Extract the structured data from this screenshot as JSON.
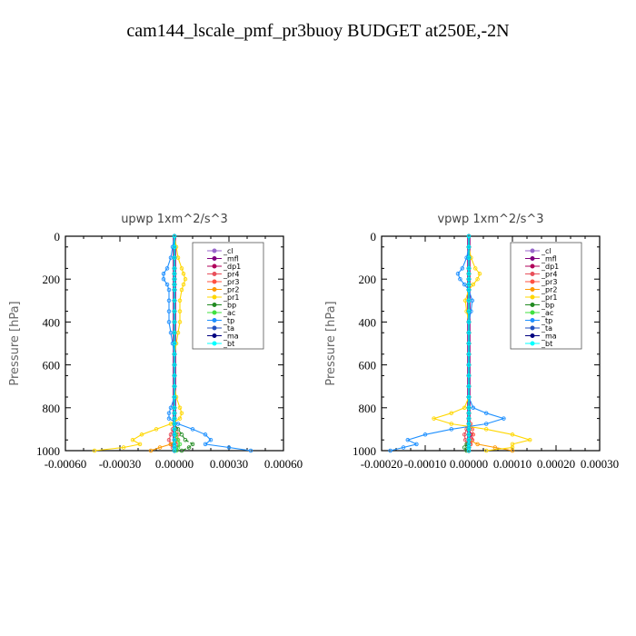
{
  "figure_title": "cam144_lscale_pmf_pr3buoy  BUDGET at250E,-2N",
  "chart_data": [
    {
      "type": "line",
      "title": "upwp   1xm^2/s^3",
      "ylabel": "Pressure [hPa]",
      "xlim": [
        -0.0006,
        0.0006
      ],
      "ylim": [
        1000,
        0
      ],
      "y_inverted": true,
      "xticks": [
        "-0.00060",
        "-0.00030",
        "0.00000",
        "0.00030",
        "0.00060"
      ],
      "yticks": [
        "0",
        "200",
        "400",
        "600",
        "800",
        "1000"
      ],
      "legend_position": "top-right",
      "levels": [
        0,
        50,
        100,
        150,
        175,
        200,
        225,
        250,
        300,
        350,
        400,
        450,
        500,
        550,
        600,
        650,
        700,
        750,
        800,
        825,
        850,
        875,
        900,
        925,
        950,
        970,
        985,
        1000
      ],
      "series": [
        {
          "name": "_cl",
          "color": "#9966cc",
          "values": [
            0,
            0,
            0,
            0,
            0,
            0,
            0,
            0,
            0,
            0,
            0,
            0,
            0,
            0,
            0,
            0,
            0,
            0,
            0,
            0,
            0,
            0,
            0,
            0,
            0,
            0,
            0,
            0
          ]
        },
        {
          "name": "_mfl",
          "color": "#800080",
          "values": [
            0,
            0,
            0,
            0,
            0,
            0,
            0,
            0,
            0,
            0,
            0,
            0,
            0,
            0,
            0,
            0,
            0,
            0,
            0,
            0,
            0,
            0,
            0,
            0,
            0,
            0,
            0,
            0
          ]
        },
        {
          "name": "_dp1",
          "color": "#b0005a",
          "values": [
            0,
            0,
            0,
            0,
            0,
            0,
            0,
            0,
            0,
            0,
            0,
            0,
            0,
            0,
            0,
            0,
            0,
            0,
            0,
            0,
            0,
            0,
            0,
            0,
            1e-05,
            -2e-05,
            1e-05,
            0
          ]
        },
        {
          "name": "_pr4",
          "color": "#e8505b",
          "values": [
            0,
            0,
            0,
            0,
            0,
            0,
            0,
            0,
            0,
            0,
            0,
            0,
            0,
            0,
            0,
            0,
            0,
            0,
            0,
            0,
            0,
            0,
            -1e-05,
            -2e-05,
            -3e-05,
            -2e-05,
            -1e-05,
            0
          ]
        },
        {
          "name": "_pr3",
          "color": "#ff5040",
          "values": [
            0,
            0,
            0,
            0,
            0,
            0,
            0,
            0,
            0,
            0,
            0,
            0,
            0,
            0,
            0,
            0,
            0,
            0,
            0,
            0,
            0,
            0,
            1e-05,
            2e-05,
            2e-05,
            1e-05,
            0,
            0
          ]
        },
        {
          "name": "_pr2",
          "color": "#ff9a00",
          "values": [
            0,
            0,
            0,
            0,
            0,
            0,
            0,
            0,
            0,
            0,
            0,
            0,
            0,
            0,
            0,
            0,
            0,
            0,
            0,
            0,
            0,
            0,
            0,
            0,
            1e-05,
            -2e-05,
            -8e-05,
            -0.00013
          ]
        },
        {
          "name": "_pr1",
          "color": "#ffd700",
          "values": [
            0,
            1e-05,
            2e-05,
            4e-05,
            5e-05,
            6e-05,
            5e-05,
            4e-05,
            3e-05,
            3e-05,
            3e-05,
            2e-05,
            1e-05,
            0,
            0,
            0,
            0,
            1e-05,
            3e-05,
            4e-05,
            3e-05,
            -2e-05,
            -0.0001,
            -0.00018,
            -0.00023,
            -0.00019,
            -0.00028,
            -0.00044
          ]
        },
        {
          "name": "_bp",
          "color": "#228b22",
          "values": [
            0,
            0,
            0,
            0,
            0,
            0,
            0,
            0,
            0,
            0,
            0,
            0,
            0,
            0,
            0,
            0,
            0,
            0,
            0,
            0,
            0,
            0,
            2e-05,
            4e-05,
            6e-05,
            0.0001,
            8e-05,
            4e-05
          ]
        },
        {
          "name": "_ac",
          "color": "#40e040",
          "values": [
            0,
            0,
            0,
            0,
            0,
            0,
            0,
            0,
            0,
            0,
            0,
            0,
            0,
            0,
            0,
            0,
            0,
            0,
            0,
            0,
            0,
            0,
            0,
            1e-05,
            2e-05,
            3e-05,
            2e-05,
            1e-05
          ]
        },
        {
          "name": "_tp",
          "color": "#1e90ff",
          "values": [
            0,
            -1e-05,
            -2e-05,
            -4e-05,
            -6e-05,
            -6e-05,
            -4e-05,
            -3e-05,
            -3e-05,
            -3e-05,
            -3e-05,
            -2e-05,
            -1e-05,
            0,
            0,
            0,
            0,
            0,
            -2e-05,
            -3e-05,
            -3e-05,
            2e-05,
            0.0001,
            0.00017,
            0.0002,
            0.00017,
            0.0003,
            0.00042
          ]
        },
        {
          "name": "_ta",
          "color": "#2050c0",
          "values": [
            0,
            0,
            0,
            0,
            0,
            0,
            0,
            0,
            0,
            0,
            0,
            0,
            0,
            0,
            0,
            0,
            0,
            0,
            0,
            0,
            0,
            0,
            0,
            0,
            0,
            0,
            0,
            0
          ]
        },
        {
          "name": "_ma",
          "color": "#000080",
          "values": [
            0,
            0,
            0,
            0,
            0,
            0,
            0,
            0,
            0,
            0,
            0,
            0,
            0,
            0,
            0,
            0,
            0,
            0,
            0,
            0,
            0,
            0,
            0,
            0,
            0,
            0,
            0,
            0
          ]
        },
        {
          "name": "_bt",
          "color": "#00ffff",
          "values": [
            0,
            0,
            0,
            0,
            0,
            0,
            0,
            0,
            0,
            0,
            0,
            0,
            0,
            0,
            0,
            0,
            0,
            0,
            0,
            0,
            0,
            0,
            0,
            0,
            0,
            0,
            0,
            0
          ]
        }
      ]
    },
    {
      "type": "line",
      "title": "vpwp   1xm^2/s^3",
      "ylabel": "Pressure [hPa]",
      "xlim": [
        -0.0002,
        0.0003
      ],
      "ylim": [
        1000,
        0
      ],
      "y_inverted": true,
      "xticks": [
        "-0.00020",
        "-0.00010",
        "0.00000",
        "0.00010",
        "0.00020",
        "0.00030"
      ],
      "yticks": [
        "0",
        "200",
        "400",
        "600",
        "800",
        "1000"
      ],
      "legend_position": "top-right",
      "levels": [
        0,
        50,
        100,
        150,
        175,
        200,
        225,
        250,
        300,
        350,
        400,
        450,
        500,
        550,
        600,
        650,
        700,
        750,
        800,
        825,
        850,
        875,
        900,
        925,
        950,
        970,
        985,
        1000
      ],
      "series": [
        {
          "name": "_cl",
          "color": "#9966cc",
          "values": [
            0,
            0,
            0,
            0,
            0,
            0,
            0,
            0,
            0,
            0,
            0,
            0,
            0,
            0,
            0,
            0,
            0,
            0,
            0,
            0,
            0,
            0,
            0,
            0,
            0,
            0,
            0,
            0
          ]
        },
        {
          "name": "_mfl",
          "color": "#800080",
          "values": [
            0,
            0,
            0,
            0,
            0,
            0,
            0,
            0,
            0,
            0,
            0,
            0,
            0,
            0,
            0,
            0,
            0,
            0,
            0,
            0,
            0,
            0,
            0,
            0,
            0,
            0,
            0,
            0
          ]
        },
        {
          "name": "_dp1",
          "color": "#b0005a",
          "values": [
            0,
            0,
            0,
            0,
            0,
            0,
            0,
            0,
            0,
            0,
            0,
            0,
            0,
            0,
            0,
            0,
            0,
            0,
            0,
            0,
            0,
            0,
            0,
            5e-06,
            8e-06,
            4e-06,
            0,
            0
          ]
        },
        {
          "name": "_pr4",
          "color": "#e8505b",
          "values": [
            0,
            0,
            0,
            0,
            0,
            0,
            0,
            0,
            0,
            0,
            0,
            0,
            0,
            0,
            0,
            0,
            0,
            0,
            0,
            0,
            0,
            0,
            -5e-06,
            -1e-05,
            -8e-06,
            -4e-06,
            0,
            0
          ]
        },
        {
          "name": "_pr3",
          "color": "#ff5040",
          "values": [
            0,
            0,
            0,
            0,
            0,
            0,
            0,
            0,
            0,
            0,
            0,
            0,
            0,
            0,
            0,
            0,
            0,
            0,
            0,
            0,
            0,
            4e-06,
            8e-06,
            1e-05,
            8e-06,
            4e-06,
            0,
            0
          ]
        },
        {
          "name": "_pr2",
          "color": "#ff9a00",
          "values": [
            0,
            0,
            0,
            0,
            0,
            0,
            0,
            0,
            0,
            0,
            0,
            0,
            0,
            0,
            0,
            0,
            0,
            0,
            0,
            0,
            0,
            0,
            0,
            0,
            0,
            2e-05,
            6e-05,
            0.0001
          ]
        },
        {
          "name": "_pr1",
          "color": "#ffd700",
          "values": [
            0,
            0,
            5e-06,
            1.5e-05,
            2.5e-05,
            2e-05,
            1e-05,
            0,
            -8e-06,
            -5e-06,
            0,
            0,
            0,
            0,
            0,
            0,
            0,
            0,
            -1e-05,
            -4e-05,
            -8e-05,
            -4e-05,
            4e-05,
            0.0001,
            0.00014,
            0.0001,
            0.0001,
            4e-05
          ]
        },
        {
          "name": "_bp",
          "color": "#228b22",
          "values": [
            0,
            0,
            0,
            0,
            0,
            0,
            0,
            0,
            0,
            0,
            0,
            0,
            0,
            0,
            0,
            0,
            0,
            0,
            0,
            0,
            0,
            0,
            0,
            0,
            0,
            -5e-06,
            -1e-05,
            -5e-06
          ]
        },
        {
          "name": "_ac",
          "color": "#40e040",
          "values": [
            0,
            0,
            0,
            0,
            0,
            0,
            0,
            0,
            0,
            0,
            0,
            0,
            0,
            0,
            0,
            0,
            0,
            0,
            0,
            0,
            0,
            0,
            0,
            0,
            0,
            0,
            0,
            0
          ]
        },
        {
          "name": "_tp",
          "color": "#1e90ff",
          "values": [
            0,
            0,
            -5e-06,
            -1.5e-05,
            -2.5e-05,
            -2e-05,
            -1e-05,
            0,
            8e-06,
            5e-06,
            0,
            0,
            0,
            0,
            0,
            0,
            0,
            0,
            1e-05,
            4e-05,
            8e-05,
            4e-05,
            -4e-05,
            -0.0001,
            -0.00014,
            -0.00012,
            -0.00015,
            -0.00018
          ]
        },
        {
          "name": "_ta",
          "color": "#2050c0",
          "values": [
            0,
            0,
            0,
            0,
            0,
            0,
            0,
            0,
            0,
            0,
            0,
            0,
            0,
            0,
            0,
            0,
            0,
            0,
            0,
            0,
            0,
            0,
            0,
            0,
            0,
            0,
            0,
            0
          ]
        },
        {
          "name": "_ma",
          "color": "#000080",
          "values": [
            0,
            0,
            0,
            0,
            0,
            0,
            0,
            0,
            0,
            0,
            0,
            0,
            0,
            0,
            0,
            0,
            0,
            0,
            0,
            0,
            0,
            0,
            0,
            0,
            0,
            0,
            0,
            0
          ]
        },
        {
          "name": "_bt",
          "color": "#00ffff",
          "values": [
            0,
            0,
            0,
            0,
            0,
            0,
            0,
            0,
            0,
            0,
            0,
            0,
            0,
            0,
            0,
            0,
            0,
            0,
            0,
            0,
            0,
            0,
            0,
            0,
            0,
            0,
            0,
            0
          ]
        }
      ]
    }
  ]
}
